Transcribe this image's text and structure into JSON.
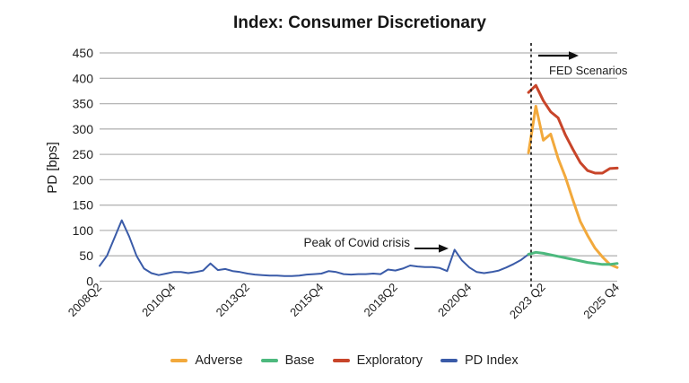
{
  "title": "Index: Consumer Discretionary",
  "chart_data": {
    "type": "line",
    "title": "Index: Consumer Discretionary",
    "ylabel": "PD [bps]",
    "ylim": [
      0,
      475
    ],
    "yticks": [
      0,
      50,
      100,
      150,
      200,
      250,
      300,
      350,
      400,
      450
    ],
    "grid": "horizontal-gray",
    "x_unit": "quarter",
    "x_start": "2008Q2",
    "x_end": "2025Q4",
    "xticks": [
      {
        "label": "2008Q2",
        "q": 0
      },
      {
        "label": "2010Q4",
        "q": 10
      },
      {
        "label": "2013Q2",
        "q": 20
      },
      {
        "label": "2015Q4",
        "q": 30
      },
      {
        "label": "2018Q2",
        "q": 40
      },
      {
        "label": "2020Q4",
        "q": 50
      },
      {
        "label": "2023 Q2",
        "q": 60
      },
      {
        "label": "2025 Q4",
        "q": 70
      }
    ],
    "divider": {
      "q": 58.35,
      "style": "dashed",
      "color": "#111111",
      "meaning": "start of FED scenario projections"
    },
    "series": [
      {
        "name": "PD Index",
        "color": "#3A5BA8",
        "start_q": 0,
        "values": [
          30,
          50,
          85,
          120,
          88,
          50,
          25,
          16,
          12,
          15,
          18,
          18,
          16,
          18,
          21,
          35,
          22,
          24,
          20,
          18,
          15,
          13,
          12,
          11,
          11,
          10,
          10,
          11,
          13,
          14,
          15,
          20,
          18,
          14,
          13,
          14,
          14,
          15,
          14,
          23,
          21,
          25,
          31,
          29,
          28,
          28,
          26,
          20,
          62,
          41,
          27,
          18,
          16,
          18,
          21,
          27,
          34,
          42,
          53
        ]
      },
      {
        "name": "Adverse",
        "color": "#F2A93C",
        "start_q": 58,
        "values": [
          253,
          345,
          278,
          290,
          242,
          205,
          160,
          118,
          90,
          65,
          48,
          33,
          27
        ]
      },
      {
        "name": "Base",
        "color": "#4DB97E",
        "start_q": 58,
        "values": [
          53,
          57,
          55,
          52,
          49,
          46,
          43,
          40,
          37,
          35,
          33,
          33,
          35
        ]
      },
      {
        "name": "Exploratory",
        "color": "#C8452A",
        "start_q": 58,
        "values": [
          372,
          386,
          356,
          334,
          322,
          288,
          260,
          234,
          218,
          213,
          213,
          222,
          223
        ]
      }
    ],
    "legend_order": [
      "Adverse",
      "Base",
      "Exploratory",
      "PD Index"
    ],
    "legend_position": "bottom",
    "annotations": [
      {
        "id": "covid-peak",
        "text": "Peak of Covid crisis",
        "arrow": "right",
        "points_to": "PD Index peak 62 bps at 2020Q2"
      },
      {
        "id": "fed-scenarios",
        "text": "FED Scenarios",
        "arrow": "right",
        "points_to": "projection region right of dashed divider"
      }
    ]
  }
}
